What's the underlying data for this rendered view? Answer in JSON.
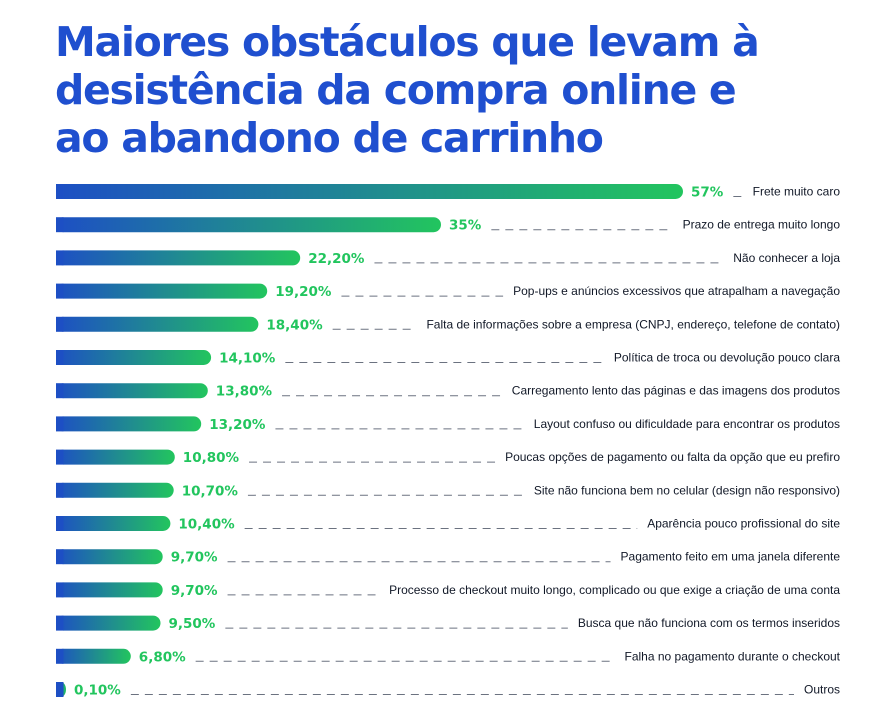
{
  "colors": {
    "title": "#1f4fcf",
    "bar_start": "#1d4fc4",
    "bar_end": "#22c55e",
    "value_text": "#22c55e",
    "label_text": "#111827"
  },
  "chart_data": {
    "type": "bar",
    "orientation": "horizontal",
    "title": "Maiores obstáculos que levam à\ndesistência da compra online e\nao abandono de carrinho",
    "xlim": [
      0,
      57
    ],
    "categories": [
      "Frete muito caro",
      "Prazo de entrega muito longo",
      "Não conhecer a loja",
      "Pop-ups e anúncios excessivos que atrapalham a navegação",
      "Falta de informações sobre a empresa (CNPJ, endereço, telefone de contato)",
      "Política de troca ou devolução pouco clara",
      "Carregamento lento das páginas e das imagens dos produtos",
      "Layout confuso ou dificuldade para encontrar os produtos",
      "Poucas opções de pagamento ou falta da opção que eu prefiro",
      "Site não funciona bem no celular (design não responsivo)",
      "Aparência pouco profissional do site",
      "Pagamento feito em uma janela diferente",
      "Processo de checkout muito longo, complicado ou que exige a criação de uma conta",
      "Busca que não funciona com os termos inseridos",
      "Falha no pagamento durante o checkout",
      "Outros"
    ],
    "values": [
      57,
      35,
      22.2,
      19.2,
      18.4,
      14.1,
      13.8,
      13.2,
      10.8,
      10.7,
      10.4,
      9.7,
      9.7,
      9.5,
      6.8,
      0.1
    ],
    "value_labels": [
      "57%",
      "35%",
      "22,20%",
      "19,20%",
      "18,40%",
      "14,10%",
      "13,80%",
      "13,20%",
      "10,80%",
      "10,70%",
      "10,40%",
      "9,70%",
      "9,70%",
      "9,50%",
      "6,80%",
      "0,10%"
    ]
  }
}
